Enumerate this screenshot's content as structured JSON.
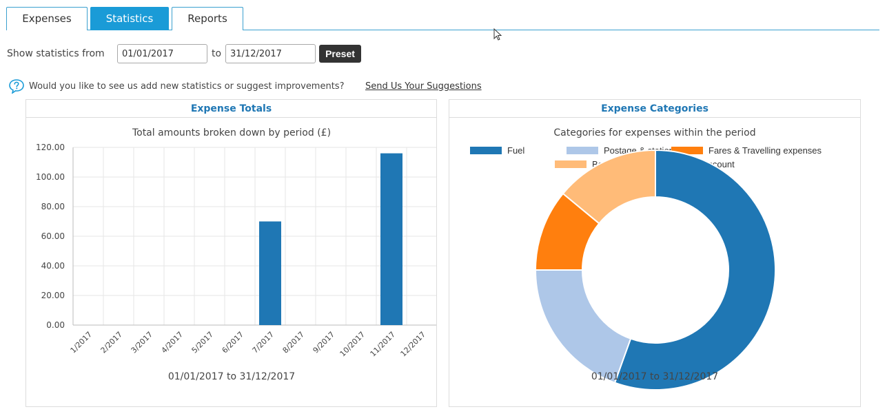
{
  "tabs": [
    {
      "label": "Expenses",
      "active": false
    },
    {
      "label": "Statistics",
      "active": true
    },
    {
      "label": "Reports",
      "active": false
    }
  ],
  "date_filter": {
    "show_label": "Show statistics from",
    "from_value": "01/01/2017",
    "to_label": "to",
    "to_value": "31/12/2017",
    "preset_label": "Preset"
  },
  "suggestion": {
    "icon": "question-bubble-icon",
    "text": "Would you like to see us add new statistics or suggest improvements?",
    "link_text": "Send Us Your Suggestions"
  },
  "panels": {
    "totals_header": "Expense Totals",
    "categories_header": "Expense Categories"
  },
  "chart_data": [
    {
      "type": "bar",
      "title": "Total amounts broken down by period (£)",
      "footer": "01/01/2017 to 31/12/2017",
      "categories": [
        "1/2017",
        "2/2017",
        "3/2017",
        "4/2017",
        "5/2017",
        "6/2017",
        "7/2017",
        "8/2017",
        "9/2017",
        "10/2017",
        "11/2017",
        "12/2017"
      ],
      "values": [
        0,
        0,
        0,
        0,
        0,
        0,
        70,
        0,
        0,
        0,
        116,
        0
      ],
      "ylim": [
        0,
        120
      ],
      "yticks": [
        "0.00",
        "20.00",
        "40.00",
        "60.00",
        "80.00",
        "100.00",
        "120.00"
      ],
      "grid": true,
      "color": "#1f77b4"
    },
    {
      "type": "pie",
      "donut": true,
      "title": "Categories for expenses within the period",
      "footer": "01/01/2017 to 31/12/2017",
      "legend_position": "top",
      "labels": [
        "Fuel",
        "Postage & stationery",
        "Fares & Travelling expenses",
        "Bank Charges on Business Account"
      ],
      "values": [
        55.5,
        19.5,
        11.0,
        14.0
      ],
      "colors": [
        "#1f77b4",
        "#aec7e8",
        "#ff7f0e",
        "#ffbb78"
      ]
    }
  ]
}
